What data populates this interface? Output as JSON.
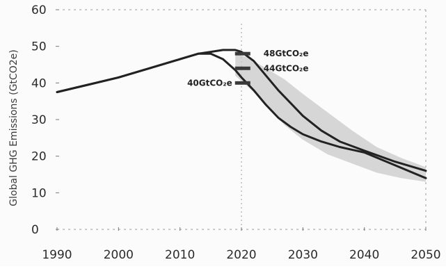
{
  "chart_data": {
    "type": "line",
    "title": "",
    "xlabel": "",
    "ylabel": "Global GHG Emissions (GtCO2e)",
    "xlim": [
      1990,
      2050
    ],
    "ylim": [
      0,
      60
    ],
    "x_ticks": [
      1990,
      2000,
      2010,
      2020,
      2030,
      2040,
      2050
    ],
    "y_ticks": [
      0,
      10,
      20,
      30,
      40,
      50,
      60
    ],
    "grid": false,
    "legend": "none",
    "colors": {
      "line": "#222222",
      "band": "#c9c9c9",
      "marker": "#3a3a3a"
    },
    "series": [
      {
        "x": [
          1990,
          1995,
          2000,
          2005,
          2010,
          2013,
          2015,
          2017,
          2019,
          2020,
          2022,
          2024,
          2026,
          2028,
          2030,
          2033,
          2036,
          2040,
          2045,
          2050
        ],
        "values": [
          37.5,
          39.5,
          41.5,
          44,
          46.5,
          48,
          48.5,
          49,
          49,
          48.5,
          46,
          42,
          38,
          34.5,
          31,
          27,
          24,
          21.5,
          18.5,
          16
        ]
      },
      {
        "x": [
          1990,
          1995,
          2000,
          2005,
          2010,
          2013,
          2015,
          2017,
          2019,
          2020,
          2022,
          2024,
          2026,
          2028,
          2030,
          2033,
          2036,
          2040,
          2045,
          2050
        ],
        "values": [
          37.5,
          39.5,
          41.5,
          44,
          46.5,
          48,
          48,
          46.5,
          43.5,
          41.5,
          38,
          34,
          30.5,
          28,
          26,
          24,
          22.5,
          21,
          17.5,
          14
        ]
      }
    ],
    "band": {
      "x": [
        2019,
        2021,
        2023,
        2025,
        2027,
        2030,
        2034,
        2038,
        2042,
        2046,
        2050
      ],
      "upper": [
        48,
        47,
        45,
        43,
        41,
        37,
        32,
        27,
        22.5,
        19.5,
        17
      ],
      "lower": [
        42,
        39,
        36,
        32,
        28.5,
        24.5,
        20.5,
        18,
        15.5,
        14,
        13
      ]
    },
    "annotations": [
      {
        "label": "48GtCO₂e",
        "x": 2020.2,
        "y": 48
      },
      {
        "label": "44GtCO₂e",
        "x": 2020.2,
        "y": 44
      },
      {
        "label": "40GtCO₂e",
        "x": 2020.2,
        "y": 40
      }
    ]
  }
}
